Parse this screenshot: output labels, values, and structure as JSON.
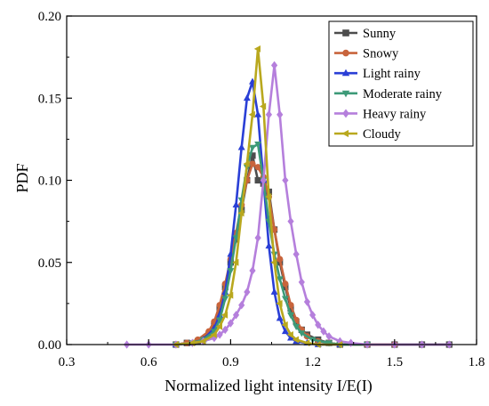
{
  "chart_data": {
    "type": "line",
    "xlabel": "Normalized light intensity I/E(I)",
    "ylabel": "PDF",
    "xlim": [
      0.3,
      1.8
    ],
    "ylim": [
      0,
      0.2
    ],
    "xticks": [
      0.3,
      0.6,
      0.9,
      1.2,
      1.5,
      1.8
    ],
    "yticks": [
      0.0,
      0.05,
      0.1,
      0.15,
      0.2
    ],
    "xtick_labels": [
      "0.3",
      "0.6",
      "0.9",
      "1.2",
      "1.5",
      "1.8"
    ],
    "ytick_labels": [
      "0.00",
      "0.05",
      "0.10",
      "0.15",
      "0.20"
    ],
    "legend_position": "top-right",
    "grid": false,
    "series": [
      {
        "name": "Sunny",
        "color": "#4d4d4d",
        "marker": "square",
        "x": [
          0.7,
          0.74,
          0.78,
          0.82,
          0.84,
          0.86,
          0.88,
          0.9,
          0.92,
          0.94,
          0.96,
          0.98,
          1.0,
          1.02,
          1.04,
          1.06,
          1.08,
          1.1,
          1.12,
          1.14,
          1.16,
          1.18,
          1.22,
          1.26,
          1.3,
          1.4,
          1.5,
          1.6,
          1.7
        ],
        "y": [
          0.0,
          0.001,
          0.002,
          0.006,
          0.012,
          0.022,
          0.035,
          0.05,
          0.064,
          0.082,
          0.1,
          0.115,
          0.1,
          0.098,
          0.093,
          0.07,
          0.05,
          0.035,
          0.022,
          0.014,
          0.009,
          0.006,
          0.003,
          0.001,
          0.0,
          0.0,
          0.0,
          0.0,
          0.0
        ]
      },
      {
        "name": "Snowy",
        "color": "#c8643c",
        "marker": "circle",
        "x": [
          0.7,
          0.74,
          0.78,
          0.82,
          0.84,
          0.86,
          0.88,
          0.9,
          0.92,
          0.94,
          0.96,
          0.98,
          1.0,
          1.02,
          1.04,
          1.06,
          1.08,
          1.1,
          1.12,
          1.14,
          1.16,
          1.18,
          1.22,
          1.26,
          1.3,
          1.4,
          1.5
        ],
        "y": [
          0.0,
          0.001,
          0.003,
          0.008,
          0.014,
          0.024,
          0.037,
          0.052,
          0.068,
          0.085,
          0.1,
          0.11,
          0.108,
          0.102,
          0.09,
          0.07,
          0.052,
          0.037,
          0.024,
          0.015,
          0.009,
          0.005,
          0.002,
          0.001,
          0.0,
          0.0,
          0.0
        ]
      },
      {
        "name": "Light rainy",
        "color": "#2a3fd6",
        "marker": "triangle-up",
        "x": [
          0.7,
          0.76,
          0.8,
          0.84,
          0.86,
          0.88,
          0.9,
          0.92,
          0.94,
          0.96,
          0.98,
          1.0,
          1.02,
          1.04,
          1.06,
          1.08,
          1.1,
          1.12,
          1.14,
          1.18,
          1.22,
          1.3
        ],
        "y": [
          0.0,
          0.001,
          0.003,
          0.01,
          0.018,
          0.032,
          0.055,
          0.085,
          0.12,
          0.15,
          0.16,
          0.14,
          0.1,
          0.06,
          0.032,
          0.016,
          0.008,
          0.004,
          0.002,
          0.001,
          0.0,
          0.0
        ]
      },
      {
        "name": "Moderate rainy",
        "color": "#3d9a78",
        "marker": "triangle-down",
        "x": [
          0.7,
          0.76,
          0.8,
          0.84,
          0.86,
          0.88,
          0.9,
          0.92,
          0.94,
          0.96,
          0.98,
          1.0,
          1.02,
          1.04,
          1.06,
          1.08,
          1.1,
          1.12,
          1.14,
          1.16,
          1.2,
          1.26,
          1.3,
          1.4
        ],
        "y": [
          0.0,
          0.001,
          0.003,
          0.008,
          0.015,
          0.028,
          0.045,
          0.065,
          0.088,
          0.108,
          0.12,
          0.122,
          0.1,
          0.075,
          0.055,
          0.04,
          0.028,
          0.018,
          0.011,
          0.007,
          0.003,
          0.001,
          0.0,
          0.0
        ]
      },
      {
        "name": "Heavy rainy",
        "color": "#b57fdc",
        "marker": "diamond",
        "x": [
          0.52,
          0.6,
          0.7,
          0.76,
          0.8,
          0.84,
          0.86,
          0.88,
          0.9,
          0.92,
          0.94,
          0.96,
          0.98,
          1.0,
          1.02,
          1.04,
          1.06,
          1.08,
          1.1,
          1.12,
          1.14,
          1.16,
          1.18,
          1.2,
          1.22,
          1.24,
          1.26,
          1.3,
          1.34,
          1.4,
          1.5,
          1.6,
          1.7
        ],
        "y": [
          0.0,
          0.0,
          0.0,
          0.001,
          0.002,
          0.004,
          0.006,
          0.009,
          0.013,
          0.018,
          0.024,
          0.032,
          0.045,
          0.065,
          0.1,
          0.14,
          0.17,
          0.14,
          0.1,
          0.075,
          0.055,
          0.038,
          0.026,
          0.018,
          0.012,
          0.008,
          0.005,
          0.002,
          0.001,
          0.0,
          0.0,
          0.0,
          0.0
        ]
      },
      {
        "name": "Cloudy",
        "color": "#b9a81e",
        "marker": "triangle-left",
        "x": [
          0.7,
          0.76,
          0.8,
          0.84,
          0.86,
          0.88,
          0.9,
          0.92,
          0.94,
          0.96,
          0.98,
          1.0,
          1.02,
          1.04,
          1.06,
          1.08,
          1.1,
          1.12,
          1.14,
          1.18,
          1.22,
          1.3
        ],
        "y": [
          0.0,
          0.001,
          0.002,
          0.006,
          0.011,
          0.018,
          0.03,
          0.05,
          0.08,
          0.11,
          0.14,
          0.18,
          0.145,
          0.09,
          0.05,
          0.025,
          0.012,
          0.006,
          0.003,
          0.001,
          0.0,
          0.0
        ]
      }
    ]
  }
}
